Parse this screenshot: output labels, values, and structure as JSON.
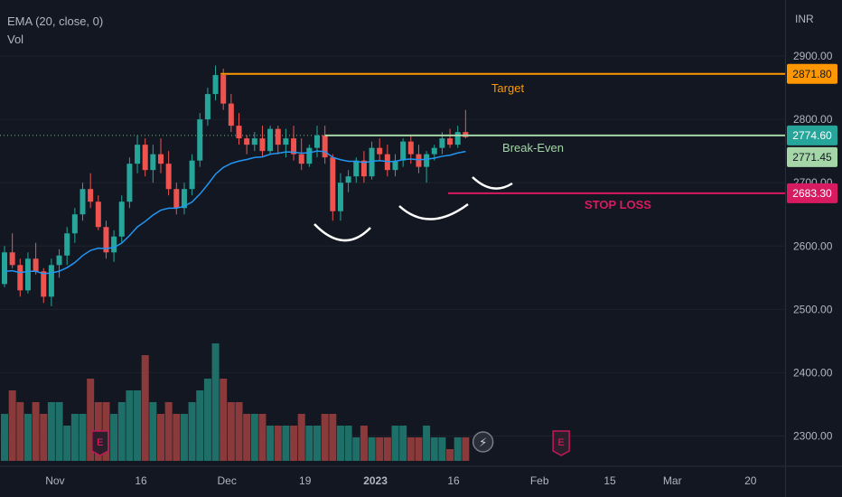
{
  "legend": {
    "ema_label": "EMA (20, close, 0)",
    "vol_label": "Vol"
  },
  "currency": "INR",
  "colors": {
    "background": "#131722",
    "up": "#26a69a",
    "down": "#ef5350",
    "vol_up": "#1f6f69",
    "vol_down": "#8a3a3a",
    "ema": "#2196f3",
    "target": "#ff9800",
    "breakeven": "#a5d6a7",
    "stoploss": "#d81b60",
    "text": "#b2b5be",
    "cup": "#ffffff"
  },
  "price_axis": {
    "ticks": [
      "2900.00",
      "2800.00",
      "2700.00",
      "2600.00",
      "2500.00",
      "2400.00",
      "2300.00"
    ],
    "tick_values": [
      2900,
      2800,
      2700,
      2600,
      2500,
      2400,
      2300
    ],
    "partial_tick": "2700.00"
  },
  "time_axis": {
    "labels": [
      {
        "text": "Nov",
        "bold": false,
        "index": 6
      },
      {
        "text": "16",
        "bold": false,
        "index": 17
      },
      {
        "text": "Dec",
        "bold": false,
        "index": 28
      },
      {
        "text": "19",
        "bold": false,
        "index": 38
      },
      {
        "text": "2023",
        "bold": true,
        "index": 47
      },
      {
        "text": "16",
        "bold": false,
        "index": 57
      },
      {
        "text": "Feb",
        "bold": false,
        "index": 68
      },
      {
        "text": "15",
        "bold": false,
        "index": 77
      },
      {
        "text": "Mar",
        "bold": false,
        "index": 85
      },
      {
        "text": "20",
        "bold": false,
        "index": 95
      }
    ]
  },
  "levels": {
    "target": {
      "label": "Target",
      "value": 2871.8,
      "badge": "2871.80"
    },
    "breakeven": {
      "label": "Break-Even",
      "value": 2774.6,
      "badge": "2774.60"
    },
    "ema_value": {
      "value": 2771.45,
      "badge": "2771.45"
    },
    "stoploss": {
      "label": "STOP LOSS",
      "value": 2683.3,
      "badge": "2683.30"
    }
  },
  "markers": [
    {
      "icon": "earnings-icon",
      "text": "E",
      "index": 12
    },
    {
      "icon": "earnings-icon",
      "text": "E",
      "index": 71
    },
    {
      "icon": "lightning-icon",
      "text": "⚡",
      "index": 61
    }
  ],
  "chart_data": {
    "type": "candlestick",
    "title": "",
    "xlabel": "",
    "ylabel": "",
    "ylim": [
      2275,
      2960
    ],
    "ema_period": 20,
    "candles": [
      [
        2540,
        2600,
        2535,
        2590,
        4
      ],
      [
        2590,
        2620,
        2565,
        2570,
        6
      ],
      [
        2570,
        2580,
        2520,
        2530,
        5
      ],
      [
        2530,
        2590,
        2525,
        2580,
        4
      ],
      [
        2580,
        2605,
        2555,
        2560,
        5
      ],
      [
        2560,
        2565,
        2510,
        2520,
        4
      ],
      [
        2520,
        2580,
        2505,
        2570,
        5
      ],
      [
        2570,
        2595,
        2550,
        2585,
        5
      ],
      [
        2585,
        2630,
        2570,
        2620,
        3
      ],
      [
        2620,
        2660,
        2605,
        2650,
        4
      ],
      [
        2650,
        2700,
        2640,
        2690,
        4
      ],
      [
        2690,
        2715,
        2660,
        2670,
        7
      ],
      [
        2670,
        2680,
        2625,
        2630,
        5
      ],
      [
        2630,
        2640,
        2580,
        2590,
        5
      ],
      [
        2590,
        2625,
        2575,
        2615,
        4
      ],
      [
        2615,
        2680,
        2605,
        2670,
        5
      ],
      [
        2670,
        2740,
        2660,
        2730,
        6
      ],
      [
        2730,
        2775,
        2715,
        2760,
        6
      ],
      [
        2760,
        2770,
        2710,
        2720,
        9
      ],
      [
        2720,
        2760,
        2700,
        2745,
        5
      ],
      [
        2745,
        2770,
        2715,
        2730,
        4
      ],
      [
        2730,
        2750,
        2680,
        2690,
        5
      ],
      [
        2690,
        2700,
        2650,
        2660,
        4
      ],
      [
        2660,
        2700,
        2650,
        2690,
        4
      ],
      [
        2690,
        2745,
        2680,
        2735,
        5
      ],
      [
        2735,
        2810,
        2725,
        2800,
        6
      ],
      [
        2800,
        2850,
        2790,
        2840,
        7
      ],
      [
        2840,
        2885,
        2830,
        2870,
        10
      ],
      [
        2870,
        2880,
        2815,
        2825,
        7
      ],
      [
        2825,
        2840,
        2780,
        2790,
        5
      ],
      [
        2790,
        2810,
        2760,
        2770,
        5
      ],
      [
        2770,
        2775,
        2745,
        2760,
        4
      ],
      [
        2760,
        2780,
        2750,
        2770,
        4
      ],
      [
        2770,
        2790,
        2740,
        2750,
        4
      ],
      [
        2750,
        2790,
        2745,
        2785,
        3
      ],
      [
        2785,
        2790,
        2745,
        2760,
        3
      ],
      [
        2760,
        2785,
        2740,
        2770,
        3
      ],
      [
        2770,
        2790,
        2735,
        2745,
        3
      ],
      [
        2745,
        2770,
        2720,
        2730,
        4
      ],
      [
        2730,
        2760,
        2725,
        2755,
        3
      ],
      [
        2755,
        2790,
        2740,
        2775,
        3
      ],
      [
        2775,
        2790,
        2730,
        2740,
        4
      ],
      [
        2740,
        2745,
        2640,
        2655,
        4
      ],
      [
        2655,
        2715,
        2640,
        2700,
        3
      ],
      [
        2700,
        2720,
        2685,
        2710,
        3
      ],
      [
        2710,
        2740,
        2700,
        2735,
        2
      ],
      [
        2735,
        2750,
        2700,
        2710,
        3
      ],
      [
        2710,
        2765,
        2705,
        2755,
        2
      ],
      [
        2755,
        2770,
        2735,
        2745,
        2
      ],
      [
        2745,
        2760,
        2710,
        2720,
        2
      ],
      [
        2720,
        2745,
        2710,
        2735,
        3
      ],
      [
        2735,
        2770,
        2725,
        2765,
        3
      ],
      [
        2765,
        2775,
        2730,
        2745,
        2
      ],
      [
        2745,
        2760,
        2715,
        2725,
        2
      ],
      [
        2725,
        2750,
        2700,
        2745,
        3
      ],
      [
        2745,
        2760,
        2735,
        2755,
        2
      ],
      [
        2755,
        2780,
        2745,
        2770,
        2
      ],
      [
        2770,
        2785,
        2755,
        2760,
        1
      ],
      [
        2760,
        2790,
        2755,
        2780,
        2
      ],
      [
        2780,
        2815,
        2770,
        2772,
        2
      ]
    ],
    "candle_fields": [
      "open",
      "high",
      "low",
      "close",
      "volume"
    ],
    "volume_unit": "relative"
  }
}
